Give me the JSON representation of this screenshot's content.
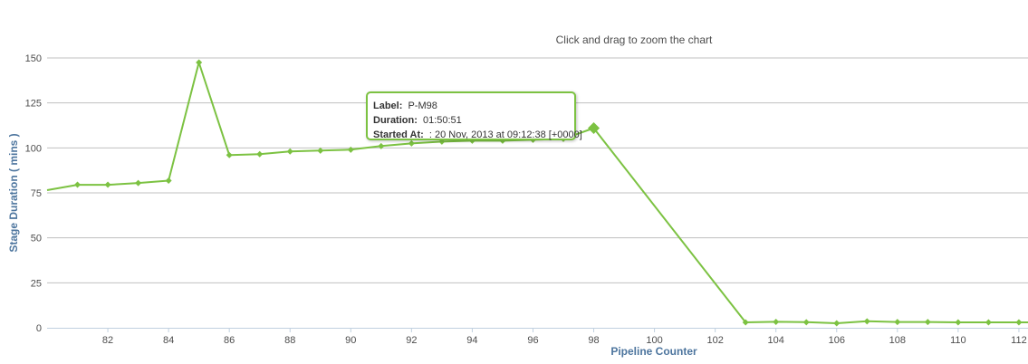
{
  "colors": {
    "series": "#7cc242",
    "axis_title": "#4d759e",
    "grid": "#c0c0c0"
  },
  "chart_data": {
    "type": "line",
    "subtitle": "Click and drag to zoom the chart",
    "xlabel": "Pipeline Counter",
    "ylabel": "Stage Duration ( mins )",
    "xlim": [
      80,
      112.3
    ],
    "ylim": [
      0,
      150
    ],
    "xticks": [
      82,
      84,
      86,
      88,
      90,
      92,
      94,
      96,
      98,
      100,
      102,
      104,
      106,
      108,
      110,
      112
    ],
    "yticks": [
      0,
      25,
      50,
      75,
      100,
      125,
      150
    ],
    "grid": true,
    "legend": "none",
    "series": [
      {
        "points": [
          [
            80,
            76.5
          ],
          [
            81,
            79.5
          ],
          [
            82,
            79.5
          ],
          [
            83,
            80.5
          ],
          [
            84,
            81.8
          ],
          [
            85,
            147.5
          ],
          [
            86,
            96
          ],
          [
            87,
            96.5
          ],
          [
            88,
            98
          ],
          [
            89,
            98.5
          ],
          [
            90,
            99
          ],
          [
            91,
            101
          ],
          [
            92,
            102.5
          ],
          [
            93,
            103.5
          ],
          [
            94,
            104
          ],
          [
            95,
            104
          ],
          [
            96,
            104.5
          ],
          [
            97,
            105
          ],
          [
            98,
            111
          ],
          [
            103,
            3
          ],
          [
            104,
            3.3
          ],
          [
            105,
            3.1
          ],
          [
            106,
            2.5
          ],
          [
            107,
            3.6
          ],
          [
            108,
            3.2
          ],
          [
            109,
            3.2
          ],
          [
            110,
            3
          ],
          [
            111,
            3
          ],
          [
            112,
            3
          ],
          [
            112.3,
            3
          ]
        ],
        "highlighted_index": 18
      }
    ],
    "tooltip": {
      "label_key": "Label:",
      "label_value": "P-M98",
      "duration_key": "Duration:",
      "duration_value": "01:50:51",
      "started_key": "Started At:",
      "started_value": ": 20 Nov, 2013 at 09:12:38 [+0000]"
    }
  }
}
